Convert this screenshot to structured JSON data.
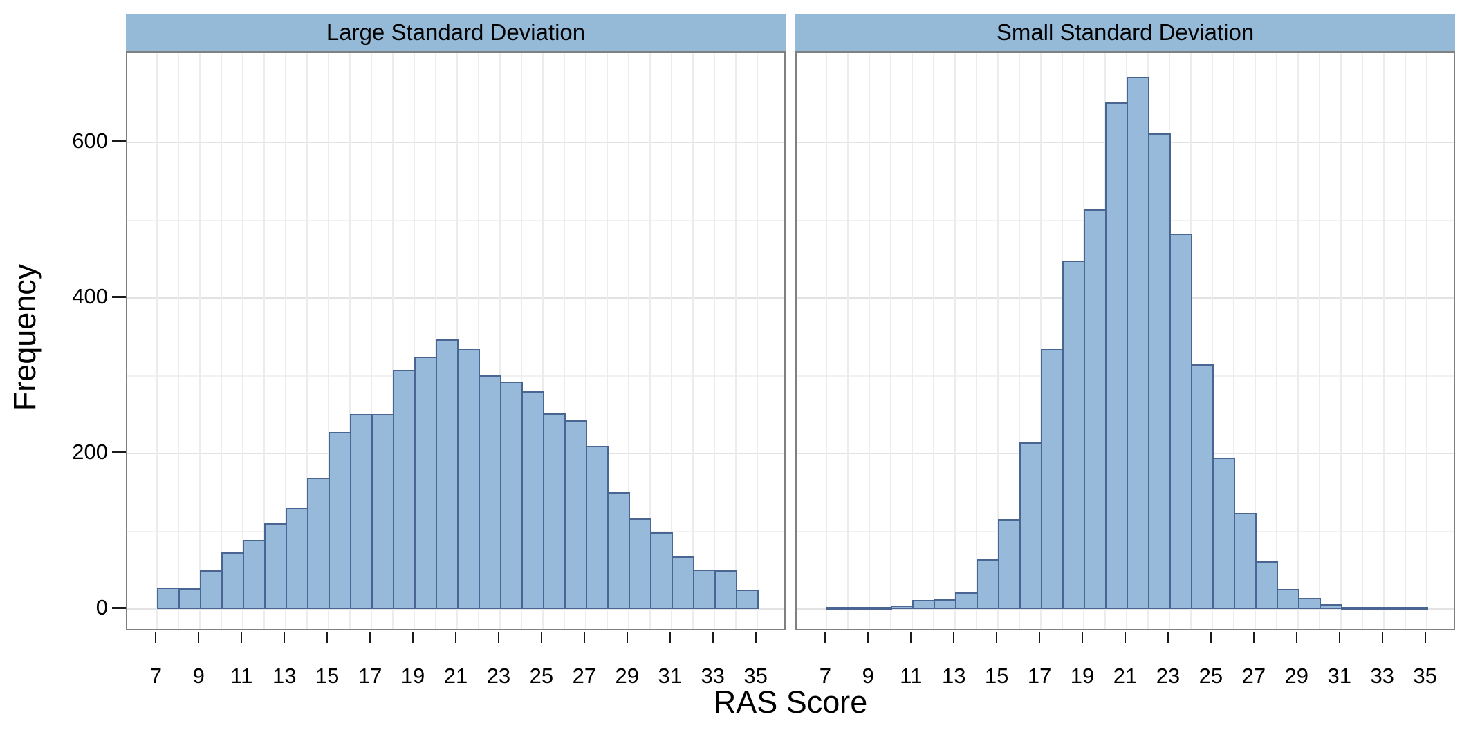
{
  "chart_data": {
    "type": "bar",
    "subtype": "faceted-histogram",
    "title": "",
    "xlabel": "RAS Score",
    "ylabel": "Frequency",
    "facets": [
      "Large Standard Deviation",
      "Small Standard Deviation"
    ],
    "bin_width": 1,
    "bin_start": 7,
    "bin_end": 35,
    "x_ticks": [
      7,
      9,
      11,
      13,
      15,
      17,
      19,
      21,
      23,
      25,
      27,
      29,
      31,
      33,
      35
    ],
    "y_ticks": [
      0,
      200,
      400,
      600
    ],
    "y_minor_ticks": [
      100,
      300,
      500
    ],
    "xlim": [
      5.6,
      36.4
    ],
    "ylim": [
      -29,
      716
    ],
    "grid": "on",
    "legend": "none",
    "series": [
      {
        "name": "Large Standard Deviation",
        "bins_left_edge": [
          7,
          8,
          9,
          10,
          11,
          12,
          13,
          14,
          15,
          16,
          17,
          18,
          19,
          20,
          21,
          22,
          23,
          24,
          25,
          26,
          27,
          28,
          29,
          30,
          31,
          32,
          33,
          34
        ],
        "values": [
          28,
          27,
          50,
          73,
          89,
          111,
          130,
          169,
          228,
          251,
          251,
          308,
          325,
          347,
          335,
          301,
          293,
          280,
          252,
          243,
          210,
          151,
          117,
          99,
          68,
          51,
          50,
          25
        ]
      },
      {
        "name": "Small Standard Deviation",
        "bins_left_edge": [
          7,
          8,
          9,
          10,
          11,
          12,
          13,
          14,
          15,
          16,
          17,
          18,
          19,
          20,
          21,
          22,
          23,
          24,
          25,
          26,
          27,
          28,
          29,
          30,
          31,
          32,
          33,
          34
        ],
        "values": [
          1,
          1,
          2,
          5,
          12,
          13,
          22,
          64,
          116,
          215,
          335,
          448,
          514,
          652,
          685,
          612,
          483,
          315,
          195,
          124,
          62,
          26,
          15,
          7,
          3,
          2,
          1,
          1
        ]
      }
    ]
  },
  "colors": {
    "background": "#ffffff",
    "strip_background": "#94bad8",
    "bar_fill": "#97b9da",
    "bar_stroke": "#4a6591",
    "panel_border": "#808080",
    "grid_major": "#e3e3e3",
    "grid_minor": "#f1f1f1",
    "grid_vertical": "#ececec",
    "tick_mark": "#1a1a1a",
    "axis_text": "#000000"
  }
}
